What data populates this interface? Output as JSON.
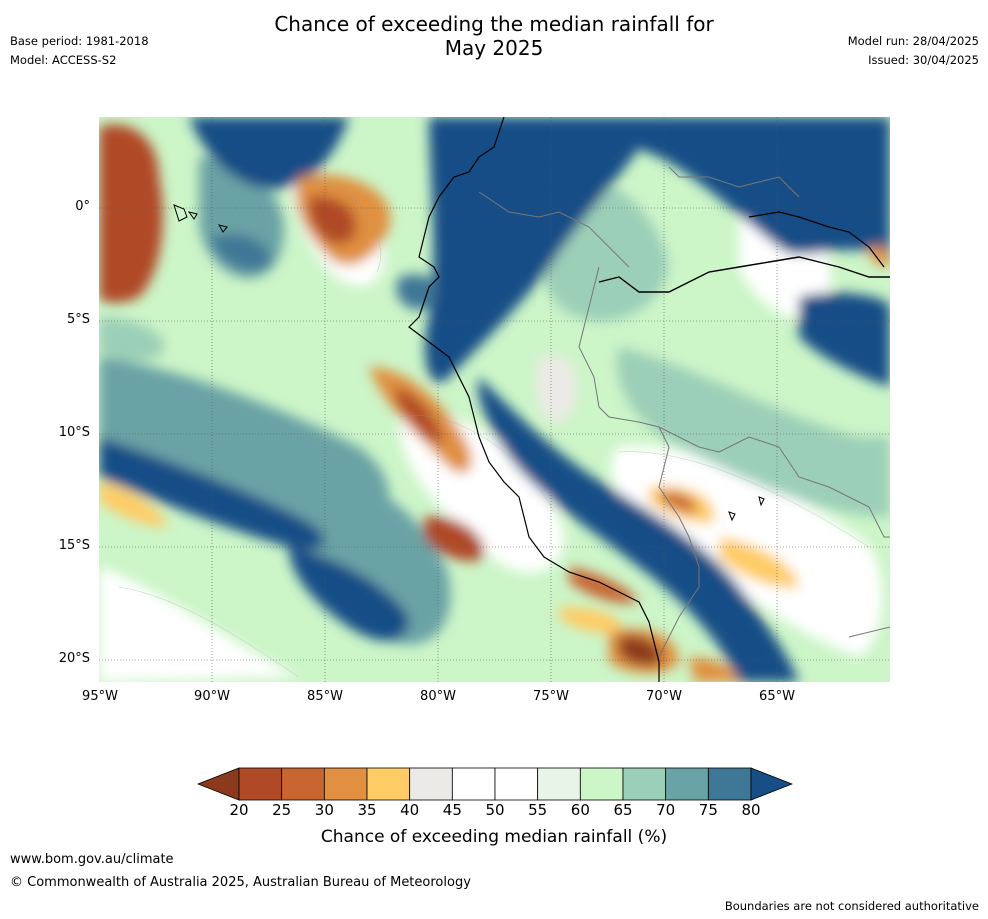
{
  "title_line1": "Chance of exceeding the median rainfall for",
  "title_line2": "May 2025",
  "meta_left": [
    "Base period: 1981-2018",
    "Model: ACCESS-S2"
  ],
  "meta_right": [
    "Model run: 28/04/2025",
    "Issued: 30/04/2025"
  ],
  "lat_labels": [
    "0°",
    "5°S",
    "10°S",
    "15°S",
    "20°S"
  ],
  "lon_labels": [
    "95°W",
    "90°W",
    "85°W",
    "80°W",
    "75°W",
    "70°W",
    "65°W"
  ],
  "colorbar": {
    "colors": [
      "#8b3a1e",
      "#b04a26",
      "#c86530",
      "#e09040",
      "#ffcc66",
      "#eceae6",
      "#ffffff",
      "#ffffff",
      "#e8f4e8",
      "#ccf5c8",
      "#9ccfb8",
      "#6aa3a6",
      "#3f7796",
      "#174e86"
    ],
    "ticks": [
      "20",
      "25",
      "30",
      "35",
      "40",
      "45",
      "50",
      "55",
      "60",
      "65",
      "70",
      "75",
      "80"
    ],
    "label": "Chance of exceeding median rainfall (%)"
  },
  "footer": {
    "url": "www.bom.gov.au/climate",
    "copyright": "© Commonwealth of Australia 2025, Australian Bureau of Meteorology",
    "disclaimer": "Boundaries are not considered authoritative"
  }
}
